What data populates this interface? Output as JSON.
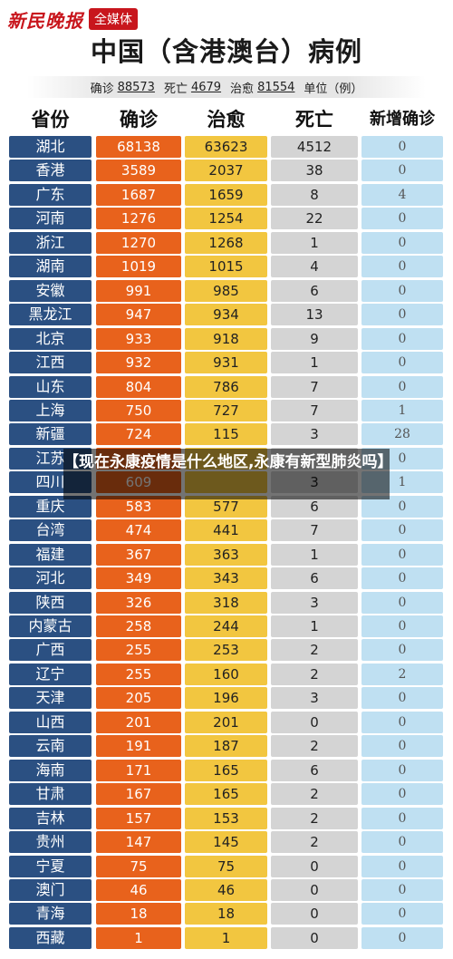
{
  "brand": {
    "logo": "新民晚报",
    "tag": "全媒体"
  },
  "title": "中国（含港澳台）病例",
  "summary": {
    "confirmed_label": "确诊",
    "confirmed": "88573",
    "death_label": "死亡",
    "death": "4679",
    "cured_label": "治愈",
    "cured": "81554",
    "unit": "单位（例）"
  },
  "headers": [
    "省份",
    "确诊",
    "治愈",
    "死亡",
    "新增确诊"
  ],
  "rows": [
    [
      "湖北",
      "68138",
      "63623",
      "4512",
      "0"
    ],
    [
      "香港",
      "3589",
      "2037",
      "38",
      "0"
    ],
    [
      "广东",
      "1687",
      "1659",
      "8",
      "4"
    ],
    [
      "河南",
      "1276",
      "1254",
      "22",
      "0"
    ],
    [
      "浙江",
      "1270",
      "1268",
      "1",
      "0"
    ],
    [
      "湖南",
      "1019",
      "1015",
      "4",
      "0"
    ],
    [
      "安徽",
      "991",
      "985",
      "6",
      "0"
    ],
    [
      "黑龙江",
      "947",
      "934",
      "13",
      "0"
    ],
    [
      "北京",
      "933",
      "918",
      "9",
      "0"
    ],
    [
      "江西",
      "932",
      "931",
      "1",
      "0"
    ],
    [
      "山东",
      "804",
      "786",
      "7",
      "0"
    ],
    [
      "上海",
      "750",
      "727",
      "7",
      "1"
    ],
    [
      "新疆",
      "724",
      "115",
      "3",
      "28"
    ],
    [
      "江苏",
      "",
      "",
      "",
      "0"
    ],
    [
      "四川",
      "609",
      "",
      "3",
      "1"
    ],
    [
      "重庆",
      "583",
      "577",
      "6",
      "0"
    ],
    [
      "台湾",
      "474",
      "441",
      "7",
      "0"
    ],
    [
      "福建",
      "367",
      "363",
      "1",
      "0"
    ],
    [
      "河北",
      "349",
      "343",
      "6",
      "0"
    ],
    [
      "陕西",
      "326",
      "318",
      "3",
      "0"
    ],
    [
      "内蒙古",
      "258",
      "244",
      "1",
      "0"
    ],
    [
      "广西",
      "255",
      "253",
      "2",
      "0"
    ],
    [
      "辽宁",
      "255",
      "160",
      "2",
      "2"
    ],
    [
      "天津",
      "205",
      "196",
      "3",
      "0"
    ],
    [
      "山西",
      "201",
      "201",
      "0",
      "0"
    ],
    [
      "云南",
      "191",
      "187",
      "2",
      "0"
    ],
    [
      "海南",
      "171",
      "165",
      "6",
      "0"
    ],
    [
      "甘肃",
      "167",
      "165",
      "2",
      "0"
    ],
    [
      "吉林",
      "157",
      "153",
      "2",
      "0"
    ],
    [
      "贵州",
      "147",
      "145",
      "2",
      "0"
    ],
    [
      "宁夏",
      "75",
      "75",
      "0",
      "0"
    ],
    [
      "澳门",
      "46",
      "46",
      "0",
      "0"
    ],
    [
      "青海",
      "18",
      "18",
      "0",
      "0"
    ],
    [
      "西藏",
      "1",
      "1",
      "0",
      "0"
    ]
  ],
  "overlay": {
    "text": "【现在永康疫情是什么地区,永康有新型肺炎吗】"
  }
}
